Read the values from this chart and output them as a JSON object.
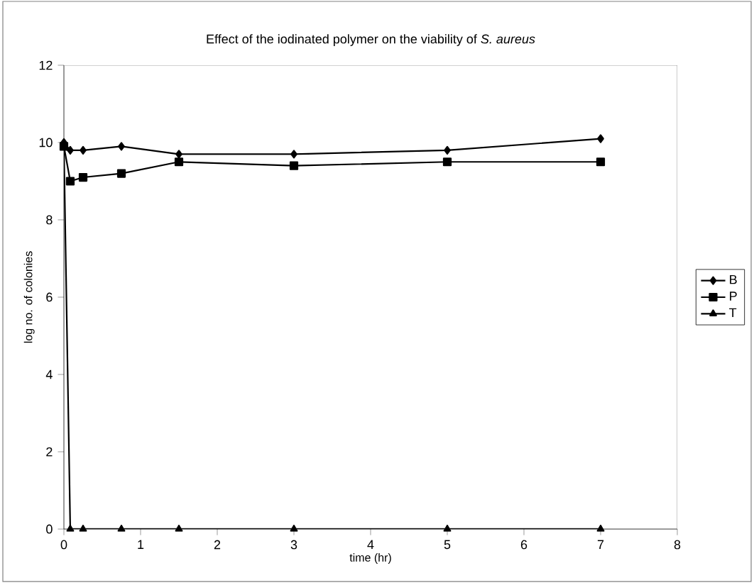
{
  "chart_data": {
    "type": "line",
    "title": "Effect of the iodinated polymer on the viability of *S. aureus*",
    "xlabel": "time (hr)",
    "ylabel": "log no. of colonies",
    "x": [
      0,
      0.083,
      0.25,
      0.75,
      1.5,
      3,
      5,
      7
    ],
    "series": [
      {
        "name": "B",
        "color": "#000000",
        "marker": "diamond",
        "values": [
          10,
          9.8,
          9.8,
          9.9,
          9.7,
          9.7,
          9.8,
          10.1
        ]
      },
      {
        "name": "P",
        "color": "#000000",
        "marker": "square",
        "values": [
          9.9,
          9.0,
          9.1,
          9.2,
          9.5,
          9.4,
          9.5,
          9.5
        ]
      },
      {
        "name": "T",
        "color": "#000000",
        "marker": "triangle",
        "values": [
          9.9,
          0,
          0,
          0,
          0,
          0,
          0,
          0
        ]
      }
    ],
    "xlim": [
      0,
      8
    ],
    "xticks": [
      0,
      1,
      2,
      3,
      4,
      5,
      6,
      7,
      8
    ],
    "ylim": [
      0,
      12
    ],
    "yticks": [
      0,
      2,
      4,
      6,
      8,
      10,
      12
    ],
    "legend": "right",
    "grid": false,
    "line_style": "solid"
  }
}
